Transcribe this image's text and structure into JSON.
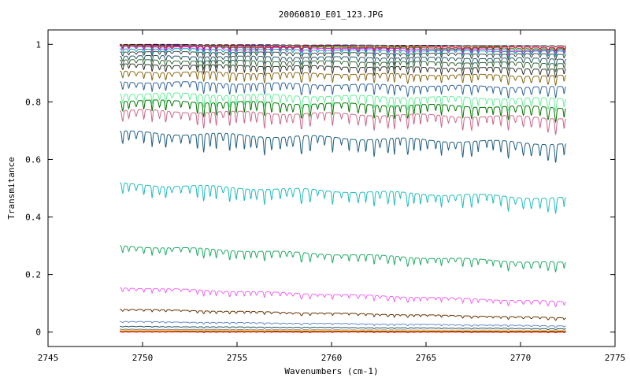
{
  "chart_data": {
    "type": "line",
    "title": "20060810_E01_123.JPG",
    "xlabel": "Wavenumbers (cm-1)",
    "ylabel": "Transmitance",
    "xlim": [
      2745,
      2775
    ],
    "ylim": [
      -0.05,
      1.05
    ],
    "x_ticks": [
      2745,
      2750,
      2755,
      2760,
      2765,
      2770,
      2775
    ],
    "y_ticks": [
      0,
      0.2,
      0.4,
      0.6,
      0.8,
      1
    ],
    "x_tick_labels": [
      "2745",
      "2750",
      "2755",
      "2760",
      "2765",
      "2770",
      "2775"
    ],
    "y_tick_labels": [
      "0",
      "0.2",
      "0.4",
      "0.6",
      "0.8",
      "1"
    ],
    "grid": false,
    "legend": "none",
    "x_range": [
      2748.8,
      2772.4
    ],
    "series": [
      {
        "color": "#2a2a2a",
        "start": 1.0,
        "end": 0.995,
        "depth": 0.004
      },
      {
        "color": "#0000ff",
        "start": 0.998,
        "end": 0.99,
        "depth": 0.012
      },
      {
        "color": "#ff0000",
        "start": 0.997,
        "end": 0.99,
        "depth": 0.01
      },
      {
        "color": "#00aa00",
        "start": 0.995,
        "end": 0.985,
        "depth": 0.015
      },
      {
        "color": "#ff00ff",
        "start": 0.993,
        "end": 0.98,
        "depth": 0.018
      },
      {
        "color": "#00aaaa",
        "start": 0.985,
        "end": 0.975,
        "depth": 0.02
      },
      {
        "color": "#444444",
        "start": 0.975,
        "end": 0.965,
        "depth": 0.02
      },
      {
        "color": "#225566",
        "start": 0.96,
        "end": 0.95,
        "depth": 0.025
      },
      {
        "color": "#336633",
        "start": 0.945,
        "end": 0.935,
        "depth": 0.028
      },
      {
        "color": "#333333",
        "start": 0.93,
        "end": 0.915,
        "depth": 0.03
      },
      {
        "color": "#8b6914",
        "start": 0.905,
        "end": 0.89,
        "depth": 0.035
      },
      {
        "color": "#336699",
        "start": 0.87,
        "end": 0.85,
        "depth": 0.04
      },
      {
        "color": "#66ee99",
        "start": 0.83,
        "end": 0.81,
        "depth": 0.045
      },
      {
        "color": "#007700",
        "start": 0.805,
        "end": 0.78,
        "depth": 0.05
      },
      {
        "color": "#cc6688",
        "start": 0.77,
        "end": 0.745,
        "depth": 0.055
      },
      {
        "color": "#1f5f7f",
        "start": 0.695,
        "end": 0.655,
        "depth": 0.065
      },
      {
        "color": "#22bbbb",
        "start": 0.515,
        "end": 0.465,
        "depth": 0.055
      },
      {
        "color": "#22aa66",
        "start": 0.3,
        "end": 0.24,
        "depth": 0.035
      },
      {
        "color": "#ee66ee",
        "start": 0.155,
        "end": 0.105,
        "depth": 0.02
      },
      {
        "color": "#663300",
        "start": 0.08,
        "end": 0.05,
        "depth": 0.01
      },
      {
        "color": "#6688cc",
        "start": 0.037,
        "end": 0.022,
        "depth": 0.006
      },
      {
        "color": "#225566",
        "start": 0.02,
        "end": 0.012,
        "depth": 0.004
      },
      {
        "color": "#777777",
        "start": 0.01,
        "end": 0.006,
        "depth": 0.003
      },
      {
        "color": "#f2d060",
        "start": 0.004,
        "end": 0.004,
        "depth": 0.003
      },
      {
        "color": "#222222",
        "start": 0.002,
        "end": 0.002,
        "depth": 0.002
      },
      {
        "color": "#ff0000",
        "start": 0.001,
        "end": 0.0,
        "depth": 0.002
      }
    ]
  }
}
